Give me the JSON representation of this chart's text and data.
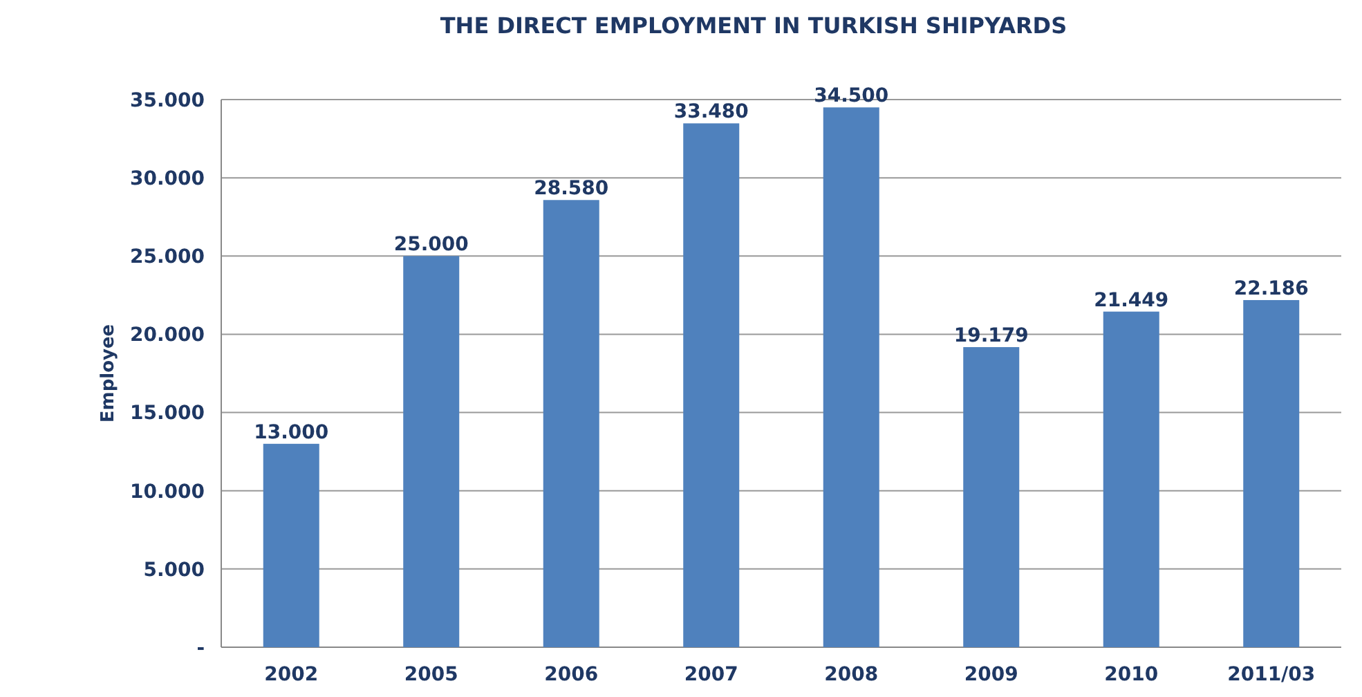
{
  "chart_data": {
    "type": "bar",
    "title": "THE DIRECT EMPLOYMENT IN TURKISH SHIPYARDS",
    "ylabel": "Employee",
    "categories": [
      "2002",
      "2005",
      "2006",
      "2007",
      "2008",
      "2009",
      "2010",
      "2011/03"
    ],
    "values": [
      13000,
      25000,
      28580,
      33480,
      34500,
      19179,
      21449,
      22186
    ],
    "value_labels": [
      "13.000",
      "25.000",
      "28.580",
      "33.480",
      "34.500",
      "19.179",
      "21.449",
      "22.186"
    ],
    "color": "#4f81bd",
    "ylim": [
      0,
      35000
    ],
    "yticks": [
      {
        "value": 0,
        "label": "-"
      },
      {
        "value": 5000,
        "label": "5.000"
      },
      {
        "value": 10000,
        "label": "10.000"
      },
      {
        "value": 15000,
        "label": "15.000"
      },
      {
        "value": 20000,
        "label": "20.000"
      },
      {
        "value": 25000,
        "label": "25.000"
      },
      {
        "value": 30000,
        "label": "30.000"
      },
      {
        "value": 35000,
        "label": "35.000"
      }
    ],
    "grid": "y"
  }
}
